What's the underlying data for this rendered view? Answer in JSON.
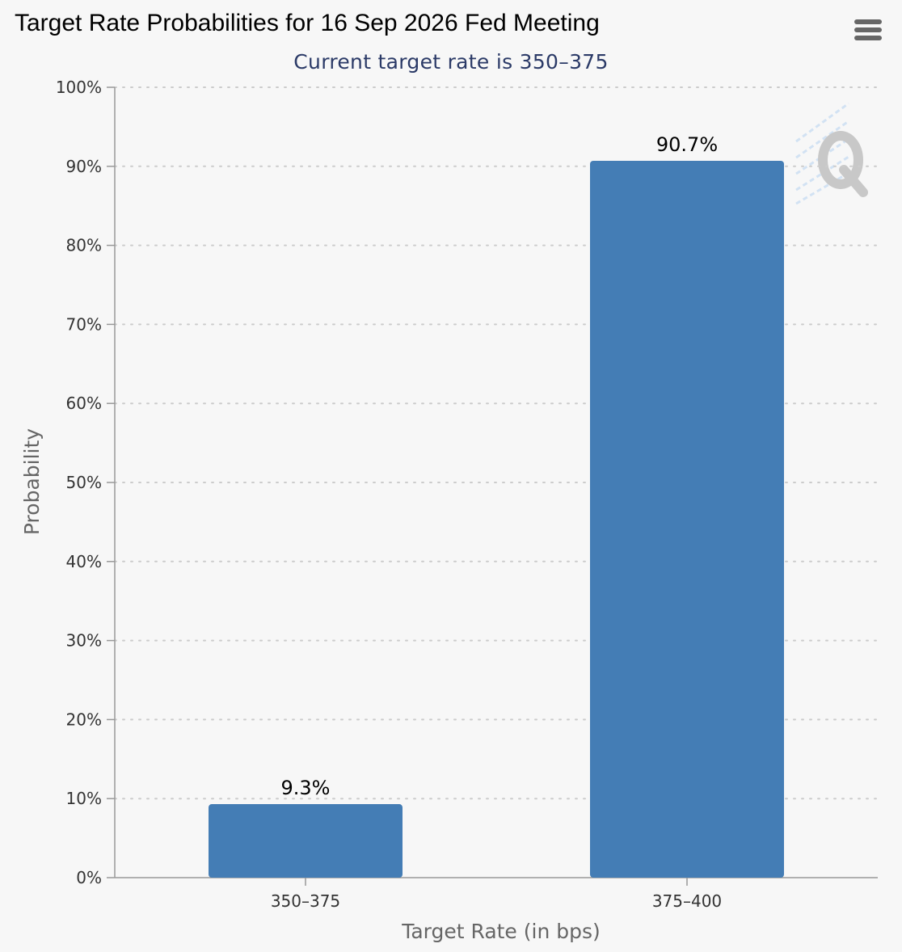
{
  "header": {
    "title": "Target Rate Probabilities for 16 Sep 2026 Fed Meeting",
    "subtitle": "Current target rate is 350–375"
  },
  "menu": {
    "icon": "hamburger-menu-icon"
  },
  "colors": {
    "bar": "#447db5",
    "grid": "#cccccc",
    "axis": "#999999"
  },
  "chart_data": {
    "type": "bar",
    "title": "Target Rate Probabilities for 16 Sep 2026 Fed Meeting",
    "subtitle": "Current target rate is 350–375",
    "categories": [
      "350–375",
      "375–400"
    ],
    "values": [
      9.3,
      90.7
    ],
    "data_labels": [
      "9.3%",
      "90.7%"
    ],
    "xlabel": "Target Rate (in bps)",
    "ylabel": "Probability",
    "ylim": [
      0,
      100
    ],
    "yticks": [
      0,
      10,
      20,
      30,
      40,
      50,
      60,
      70,
      80,
      90,
      100
    ],
    "ytick_labels": [
      "0%",
      "10%",
      "20%",
      "30%",
      "40%",
      "50%",
      "60%",
      "70%",
      "80%",
      "90%",
      "100%"
    ],
    "grid": true,
    "legend": "none"
  }
}
